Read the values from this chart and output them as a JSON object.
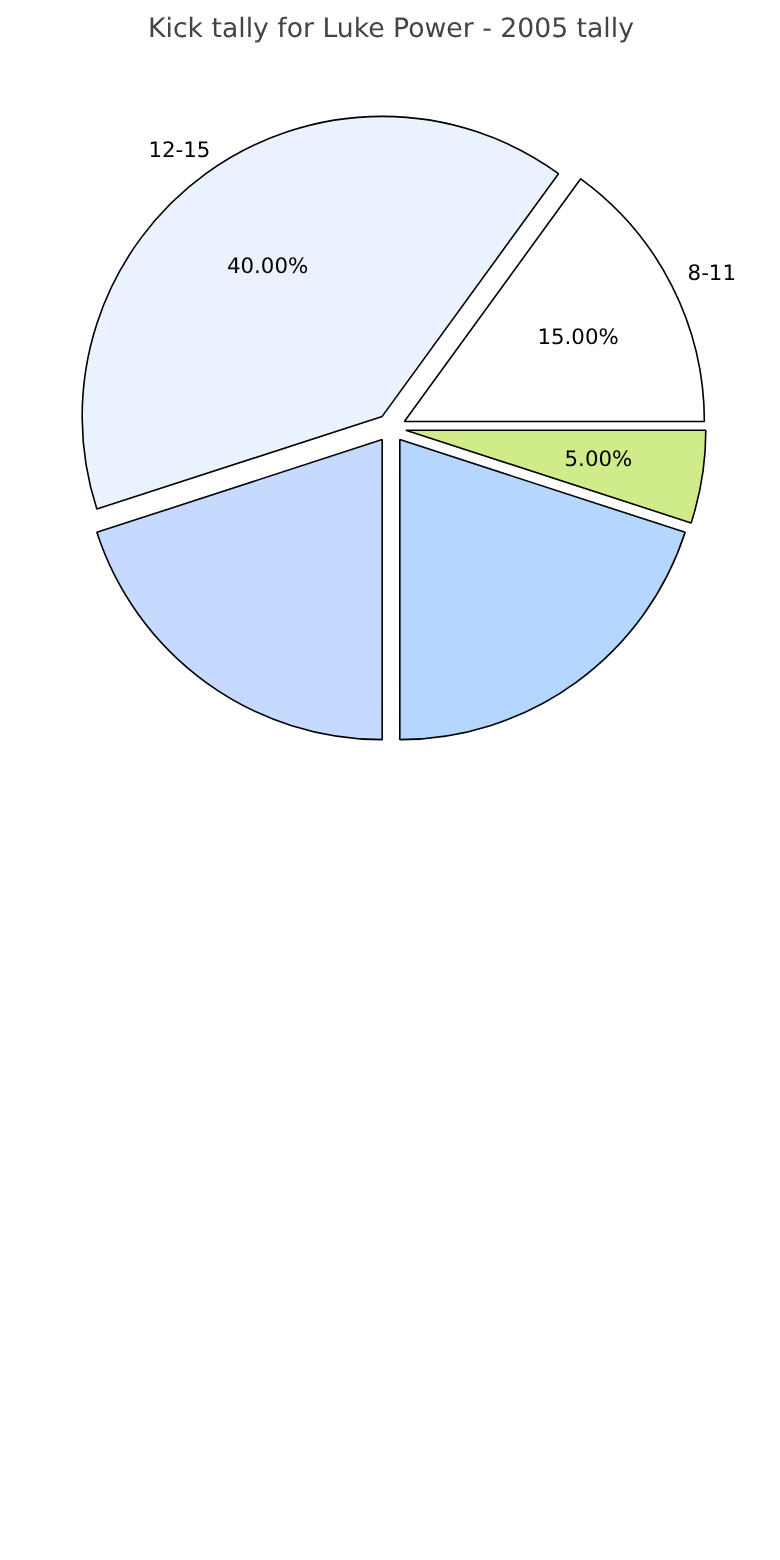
{
  "chart_data": {
    "type": "pie",
    "title": "Kick tally for Luke Power - 2005 tally",
    "categories": [
      "8-11",
      "12-15",
      null,
      null,
      null
    ],
    "values": [
      15,
      40,
      20,
      20,
      5
    ],
    "colors": [
      "#ffffff",
      "#eaf2ff",
      "#c6d9ff",
      "#b4d6ff",
      "#d0ec8a"
    ],
    "value_labels": [
      "15.00%",
      "40.00%",
      null,
      null,
      "5.00%"
    ]
  }
}
